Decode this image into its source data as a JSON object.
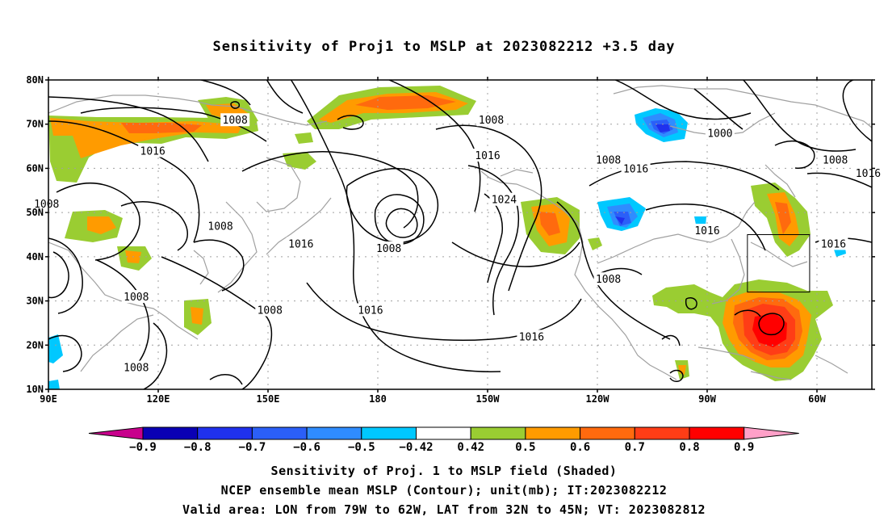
{
  "title": "Sensitivity of Proj1 to MSLP at 2023082212 +3.5 day",
  "axes": {
    "lat_labels": [
      "80N",
      "70N",
      "60N",
      "50N",
      "40N",
      "30N",
      "20N",
      "10N"
    ],
    "lat_values": [
      80,
      70,
      60,
      50,
      40,
      30,
      20,
      10
    ],
    "lon_labels": [
      "90E",
      "120E",
      "150E",
      "180",
      "150W",
      "120W",
      "90W",
      "60W"
    ],
    "lon_values": [
      90,
      120,
      150,
      180,
      210,
      240,
      270,
      300
    ],
    "lon_range": [
      90,
      315
    ],
    "lat_range": [
      10,
      80
    ]
  },
  "contour_labels": [
    {
      "text": "1008",
      "lon": 141,
      "lat": 71
    },
    {
      "text": "1016",
      "lon": 118.5,
      "lat": 64
    },
    {
      "text": "1008",
      "lon": 89.5,
      "lat": 52
    },
    {
      "text": "1008",
      "lon": 137,
      "lat": 47
    },
    {
      "text": "1016",
      "lon": 159,
      "lat": 43
    },
    {
      "text": "1008",
      "lon": 114,
      "lat": 31
    },
    {
      "text": "1008",
      "lon": 150.5,
      "lat": 28
    },
    {
      "text": "1016",
      "lon": 178,
      "lat": 28
    },
    {
      "text": "1008",
      "lon": 114,
      "lat": 15
    },
    {
      "text": "1008",
      "lon": 211,
      "lat": 71
    },
    {
      "text": "1016",
      "lon": 210,
      "lat": 63
    },
    {
      "text": "1024",
      "lon": 214.5,
      "lat": 53
    },
    {
      "text": "1008",
      "lon": 183,
      "lat": 42
    },
    {
      "text": "1016",
      "lon": 222,
      "lat": 22
    },
    {
      "text": "1008",
      "lon": 243,
      "lat": 62
    },
    {
      "text": "1016",
      "lon": 250.5,
      "lat": 60
    },
    {
      "text": "1008",
      "lon": 243,
      "lat": 35
    },
    {
      "text": "1000",
      "lon": 273.5,
      "lat": 68
    },
    {
      "text": "1016",
      "lon": 270,
      "lat": 46
    },
    {
      "text": "1008",
      "lon": 305,
      "lat": 62
    },
    {
      "text": "1016",
      "lon": 314,
      "lat": 59
    },
    {
      "text": "1016",
      "lon": 304.5,
      "lat": 43
    }
  ],
  "colorbar": {
    "labels": [
      "-0.9",
      "-0.8",
      "-0.7",
      "-0.6",
      "-0.5",
      "-0.42",
      "0.42",
      "0.5",
      "0.6",
      "0.7",
      "0.8",
      "0.9"
    ],
    "colors": [
      "#0a00b4",
      "#1f31ee",
      "#2b5ff8",
      "#2f8cff",
      "#00c8ff",
      "#ffffff",
      "#9acd32",
      "#ff9b00",
      "#ff6a0e",
      "#ff3d16",
      "#ff0000"
    ],
    "low_end_color": "#c8008c",
    "high_end_color": "#ffa0c8"
  },
  "captions": [
    "Sensitivity of Proj. 1 to MSLP field (Shaded)",
    "NCEP ensemble mean MSLP (Contour); unit(mb); IT:2023082212",
    "Valid area: LON from 79W to 62W, LAT from 32N to 45N; VT: 2023082812"
  ],
  "valid_area": {
    "lon_min": 281,
    "lon_max": 298,
    "lat_min": 32,
    "lat_max": 45
  },
  "colors": {
    "contour": "#000000",
    "coastline": "#a0a0a0",
    "grid": "#a0a0a0"
  }
}
